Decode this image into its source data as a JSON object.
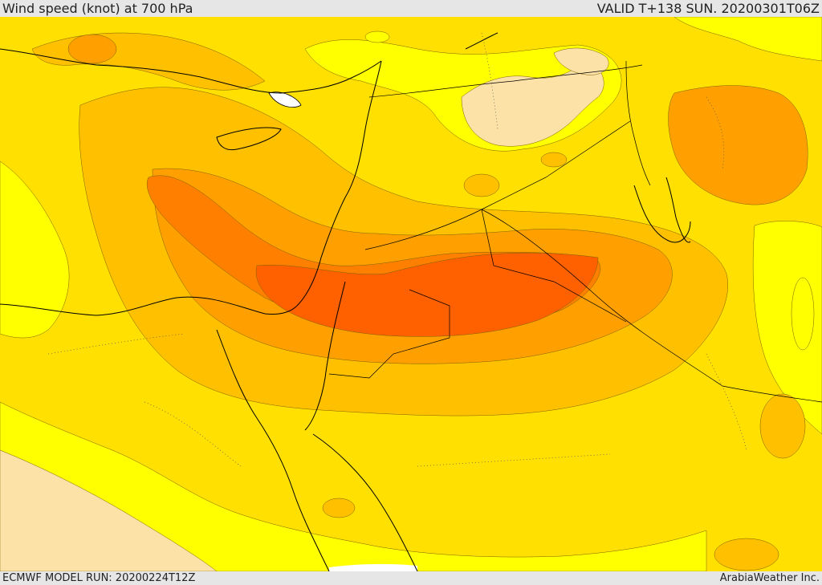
{
  "header": {
    "title": "Wind speed (knot) at 700 hPa",
    "valid": "VALID T+138 SUN. 20200301T06Z"
  },
  "footer": {
    "model_run": "ECMWF MODEL RUN: 20200224T12Z",
    "credit": "ArabiaWeather Inc."
  },
  "map": {
    "variable": "Wind speed",
    "units": "knot",
    "level": "700 hPa",
    "colors": {
      "band_1": "#fde2a8",
      "band_2": "#ffff00",
      "band_3": "#ffe000",
      "band_4": "#ffc000",
      "band_5": "#ffa000",
      "band_6": "#ff8000",
      "band_7": "#ff6000",
      "water": "#ffffff",
      "coastline": "#000000"
    }
  }
}
